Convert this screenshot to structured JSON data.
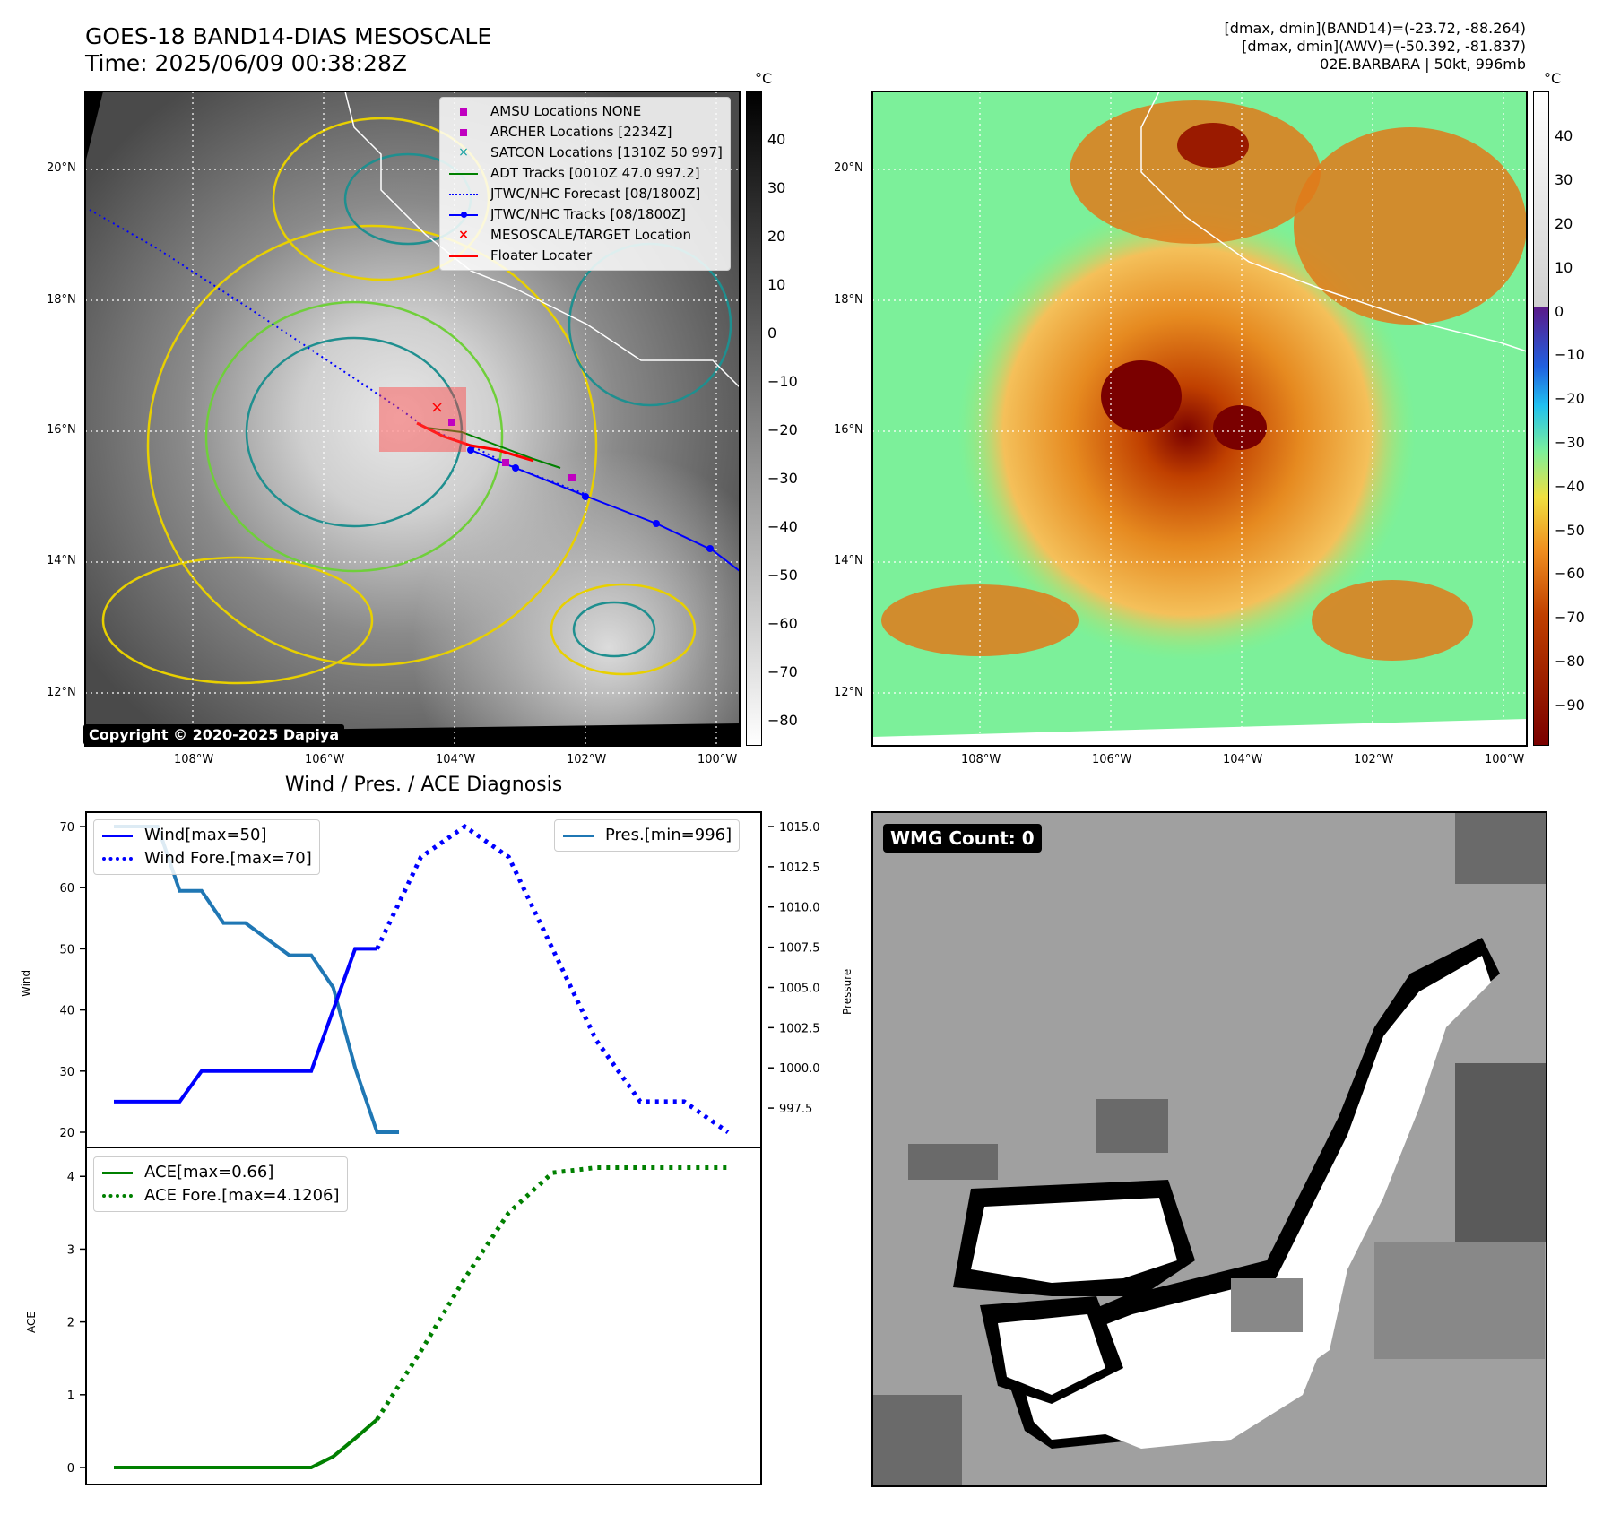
{
  "header": {
    "title_line1": "GOES-18 BAND14-DIAS MESOSCALE",
    "title_line2": "Time: 2025/06/09 00:38:28Z",
    "meta_line1": "[dmax, dmin](BAND14)=(-23.72, -88.264)",
    "meta_line2": "[dmax, dmin](AWV)=(-50.392, -81.837)",
    "meta_line3": "02E.BARBARA | 50kt, 996mb"
  },
  "map_left": {
    "copyright": "Copyright © 2020-2025 Dapiya",
    "lat_labels": [
      "20°N",
      "18°N",
      "16°N",
      "14°N",
      "12°N"
    ],
    "lon_labels": [
      "108°W",
      "106°W",
      "104°W",
      "102°W",
      "100°W"
    ],
    "legend": [
      {
        "label": "AMSU Locations NONE",
        "color": "#c000c0",
        "marker": "square"
      },
      {
        "label": "ARCHER Locations [2234Z]",
        "color": "#c000c0",
        "marker": "square"
      },
      {
        "label": "SATCON Locations [1310Z 50 997]",
        "color": "#17a0a0",
        "marker": "x"
      },
      {
        "label": "ADT Tracks [0010Z 47.0 997.2]",
        "color": "#008000",
        "marker": "line"
      },
      {
        "label": "JTWC/NHC Forecast [08/1800Z]",
        "color": "#0000ff",
        "marker": "dotted"
      },
      {
        "label": "JTWC/NHC Tracks [08/1800Z]",
        "color": "#0000ff",
        "marker": "linedot"
      },
      {
        "label": "MESOSCALE/TARGET Location",
        "color": "#ff0000",
        "marker": "x"
      },
      {
        "label": "Floater Locater",
        "color": "#ff0000",
        "marker": "line"
      }
    ],
    "colorbar_unit": "°C",
    "colorbar_ticks": [
      "40",
      "30",
      "20",
      "10",
      "0",
      "−10",
      "−20",
      "−30",
      "−40",
      "−50",
      "−60",
      "−70",
      "−80"
    ]
  },
  "map_right": {
    "lat_labels": [
      "20°N",
      "18°N",
      "16°N",
      "14°N",
      "12°N"
    ],
    "lon_labels": [
      "108°W",
      "106°W",
      "104°W",
      "102°W",
      "100°W"
    ],
    "colorbar_unit": "°C",
    "colorbar_ticks": [
      "40",
      "30",
      "20",
      "10",
      "0",
      "−10",
      "−20",
      "−30",
      "−40",
      "−50",
      "−60",
      "−70",
      "−80",
      "−90"
    ]
  },
  "diag": {
    "title": "Wind / Pres. / ACE Diagnosis",
    "ylabel_wind": "Wind",
    "ylabel_pres": "Pressure",
    "ylabel_ace": "ACE",
    "legend_wind": "Wind[max=50]",
    "legend_wind_fore": "Wind Fore.[max=70]",
    "legend_pres": "Pres.[min=996]",
    "legend_ace": "ACE[max=0.66]",
    "legend_ace_fore": "ACE Fore.[max=4.1206]",
    "wind_ticks": [
      "70",
      "60",
      "50",
      "40",
      "30",
      "20"
    ],
    "pres_ticks": [
      "1015.0",
      "1012.5",
      "1010.0",
      "1007.5",
      "1005.0",
      "1002.5",
      "1000.0",
      "997.5"
    ],
    "ace_ticks": [
      "4",
      "3",
      "2",
      "1",
      "0"
    ]
  },
  "wmg": {
    "label": "WMG Count: 0"
  },
  "chart_data": {
    "type": "line",
    "title": "Wind / Pres. / ACE Diagnosis",
    "x": [
      0,
      1,
      2,
      3,
      4,
      5,
      6,
      7,
      8,
      9,
      10,
      11,
      12,
      13,
      14,
      15,
      16,
      17,
      18,
      19,
      20,
      21,
      22,
      23,
      24,
      25,
      26,
      27,
      28
    ],
    "wind": {
      "name": "Wind[max=50]",
      "values": [
        25,
        25,
        25,
        25,
        30,
        30,
        30,
        30,
        30,
        30,
        40,
        50,
        50
      ],
      "color": "#0000ff"
    },
    "wind_forecast": {
      "name": "Wind Fore.[max=70]",
      "x": [
        12,
        14,
        16,
        18,
        20,
        22,
        24,
        26,
        28
      ],
      "values": [
        50,
        65,
        70,
        65,
        50,
        35,
        25,
        25,
        20
      ],
      "color": "#0000ff"
    },
    "pressure": {
      "name": "Pres.[min=996]",
      "values": [
        1015,
        1015,
        1015,
        1011,
        1011,
        1009,
        1009,
        1008,
        1007,
        1007,
        1005,
        1000,
        996,
        996
      ],
      "color": "#1f77b4"
    },
    "ace": {
      "name": "ACE[max=0.66]",
      "values": [
        0,
        0,
        0,
        0,
        0,
        0,
        0,
        0,
        0,
        0,
        0.15,
        0.4,
        0.66
      ],
      "color": "#008000"
    },
    "ace_forecast": {
      "name": "ACE Fore.[max=4.1206]",
      "x": [
        12,
        14,
        16,
        18,
        20,
        22,
        24,
        26,
        28
      ],
      "values": [
        0.66,
        1.6,
        2.6,
        3.5,
        4.05,
        4.12,
        4.12,
        4.12,
        4.12
      ],
      "color": "#008000"
    },
    "ylim_wind": [
      20,
      70
    ],
    "ylim_pressure": [
      996,
      1015
    ],
    "ylim_ace": [
      0,
      4.2
    ],
    "grid": false
  }
}
